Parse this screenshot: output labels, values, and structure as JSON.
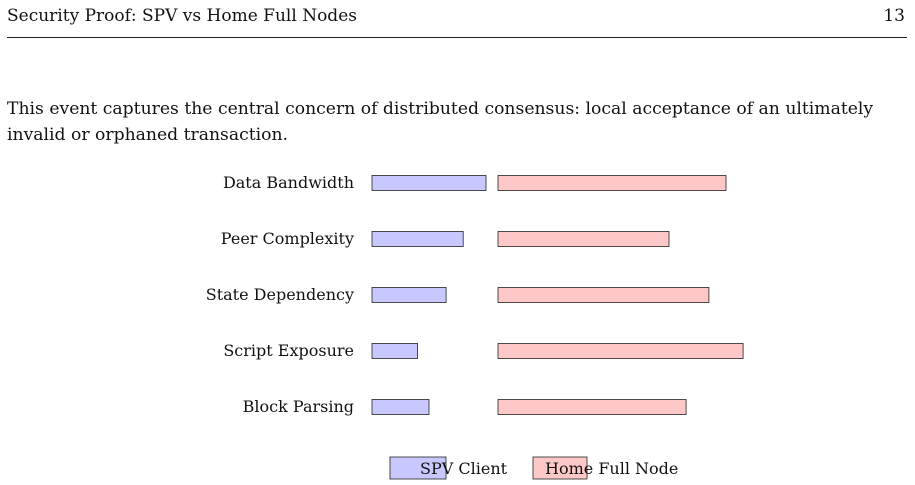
{
  "page": {
    "running_title": "Security Proof: SPV vs Home Full Nodes",
    "page_number": "13"
  },
  "body": {
    "paragraph": "This event captures the central concern of distributed consensus: local acceptance of an ultimately invalid or orphaned transaction."
  },
  "colors": {
    "spv": "#c8c8ff",
    "full_node": "#ffc8c8",
    "bar_stroke": "#222222"
  },
  "chart_data": {
    "type": "bar",
    "orientation": "horizontal",
    "categories": [
      "Data Bandwidth",
      "Peer Complexity",
      "State Dependency",
      "Script Exposure",
      "Block Parsing"
    ],
    "series": [
      {
        "name": "SPV Client",
        "values": [
          2.0,
          1.6,
          1.3,
          0.8,
          1.0
        ]
      },
      {
        "name": "Home Full Node",
        "values": [
          4.0,
          3.0,
          3.7,
          4.3,
          3.3
        ]
      }
    ],
    "title": "",
    "xlabel": "",
    "ylabel": "",
    "grid": false,
    "legend": "bottom"
  }
}
